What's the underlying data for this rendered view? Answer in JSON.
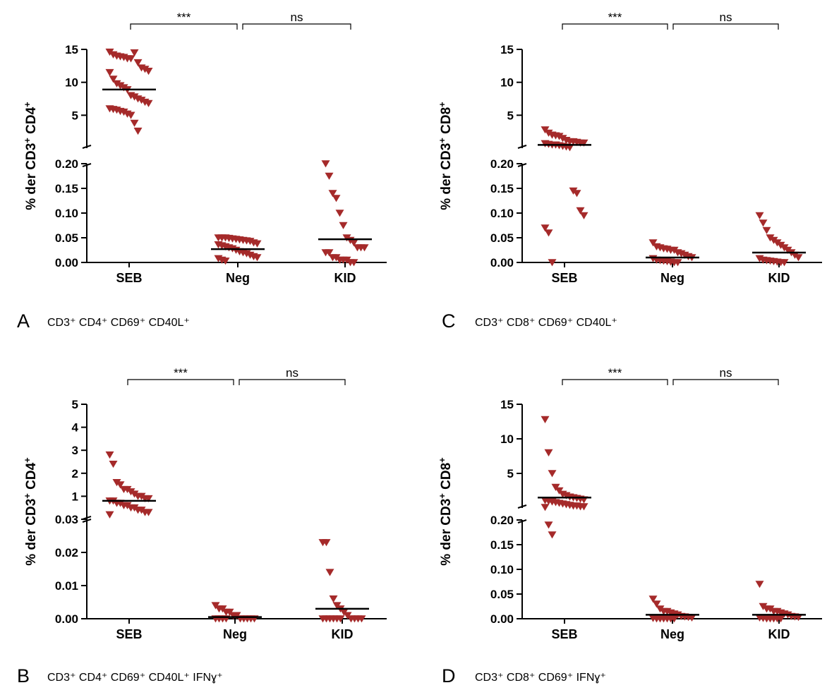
{
  "chart_data": [
    {
      "type": "scatter",
      "panel": "A",
      "caption": "CD3⁺ CD4⁺ CD69⁺ CD40L⁺",
      "ylabel_parts": [
        "% der CD3",
        "+",
        " CD4",
        "+"
      ],
      "categories": [
        "SEB",
        "Neg",
        "KID"
      ],
      "upper_ylim": [
        0,
        15
      ],
      "upper_ticks": [
        "5",
        "10",
        "15"
      ],
      "lower_ylim": [
        0,
        0.2
      ],
      "lower_ticks": [
        "0.00",
        "0.05",
        "0.10",
        "0.15",
        "0.20"
      ],
      "comparisons": [
        {
          "from": "SEB",
          "to": "Neg",
          "label": "***"
        },
        {
          "from": "Neg",
          "to": "KID",
          "label": "ns"
        }
      ],
      "groups": [
        {
          "category": "SEB",
          "mean": 8.9,
          "segment": "upper",
          "values": [
            14.6,
            14.2,
            14.0,
            13.9,
            13.8,
            13.6,
            13.6,
            14.5,
            13.0,
            12.2,
            12.0,
            11.7,
            11.5,
            10.5,
            9.8,
            9.5,
            9.2,
            8.9,
            8.0,
            7.8,
            7.5,
            7.3,
            7.0,
            6.8,
            6.0,
            5.9,
            5.8,
            5.6,
            5.5,
            5.2,
            5.0,
            3.8,
            2.6
          ]
        },
        {
          "category": "Neg",
          "mean": 0.027,
          "segment": "lower",
          "values": [
            0.05,
            0.05,
            0.05,
            0.049,
            0.048,
            0.047,
            0.046,
            0.045,
            0.044,
            0.043,
            0.04,
            0.038,
            0.036,
            0.034,
            0.032,
            0.03,
            0.028,
            0.025,
            0.022,
            0.02,
            0.018,
            0.015,
            0.012,
            0.01,
            0.008,
            0.005,
            0.003
          ]
        },
        {
          "category": "KID",
          "mean": 0.047,
          "segment": "lower",
          "values": [
            0.2,
            0.175,
            0.14,
            0.13,
            0.1,
            0.075,
            0.05,
            0.045,
            0.04,
            0.03,
            0.03,
            0.03,
            0.02,
            0.02,
            0.01,
            0.01,
            0.005,
            0.005,
            0.005,
            0.0,
            0.0
          ]
        }
      ]
    },
    {
      "type": "scatter",
      "panel": "C",
      "caption": "CD3⁺ CD8⁺ CD69⁺ CD40L⁺",
      "ylabel_parts": [
        "% der CD3",
        "+",
        " CD8",
        "+"
      ],
      "categories": [
        "SEB",
        "Neg",
        "KID"
      ],
      "upper_ylim": [
        0,
        15
      ],
      "upper_ticks": [
        "5",
        "10",
        "15"
      ],
      "lower_ylim": [
        0,
        0.2
      ],
      "lower_ticks": [
        "0.00",
        "0.05",
        "0.10",
        "0.15",
        "0.20"
      ],
      "comparisons": [
        {
          "from": "SEB",
          "to": "Neg",
          "label": "***"
        },
        {
          "from": "Neg",
          "to": "KID",
          "label": "ns"
        }
      ],
      "groups": [
        {
          "category": "SEB",
          "mean": 0.5,
          "segment": "mixed",
          "upper_values": [
            2.8,
            2.3,
            2.0,
            1.9,
            1.8,
            1.5,
            1.2,
            1.0,
            1.0,
            0.9,
            0.8,
            0.8,
            0.7,
            0.6,
            0.5,
            0.5,
            0.4,
            0.3,
            0.2,
            0.1
          ],
          "lower_values": [
            0.145,
            0.14,
            0.105,
            0.095,
            0.07,
            0.06,
            0.0
          ]
        },
        {
          "category": "Neg",
          "mean": 0.01,
          "segment": "lower",
          "values": [
            0.04,
            0.032,
            0.03,
            0.028,
            0.027,
            0.025,
            0.025,
            0.02,
            0.018,
            0.015,
            0.012,
            0.01,
            0.008,
            0.005,
            0.004,
            0.003,
            0.002,
            0.001,
            0.0,
            0.0
          ]
        },
        {
          "category": "KID",
          "mean": 0.02,
          "segment": "lower",
          "values": [
            0.095,
            0.08,
            0.065,
            0.05,
            0.045,
            0.04,
            0.035,
            0.03,
            0.025,
            0.02,
            0.015,
            0.01,
            0.008,
            0.005,
            0.004,
            0.003,
            0.002,
            0.001,
            0.0,
            0.0
          ]
        }
      ]
    },
    {
      "type": "scatter",
      "panel": "B",
      "caption": "CD3⁺ CD4⁺ CD69⁺ CD40L⁺ IFNɣ⁺",
      "ylabel_parts": [
        "% der CD3",
        "+",
        " CD4",
        "+"
      ],
      "categories": [
        "SEB",
        "Neg",
        "KID"
      ],
      "upper_ylim": [
        0,
        5
      ],
      "upper_ticks": [
        "1",
        "2",
        "3",
        "4",
        "5"
      ],
      "lower_ylim": [
        0,
        0.03
      ],
      "lower_ticks": [
        "0.00",
        "0.01",
        "0.02",
        "0.03"
      ],
      "comparisons": [
        {
          "from": "SEB",
          "to": "Neg",
          "label": "***"
        },
        {
          "from": "Neg",
          "to": "KID",
          "label": "ns"
        }
      ],
      "groups": [
        {
          "category": "SEB",
          "mean": 0.8,
          "segment": "upper",
          "values": [
            2.8,
            2.4,
            1.6,
            1.5,
            1.3,
            1.3,
            1.2,
            1.1,
            1.0,
            1.0,
            0.9,
            0.9,
            0.8,
            0.8,
            0.7,
            0.7,
            0.6,
            0.6,
            0.5,
            0.5,
            0.4,
            0.4,
            0.3,
            0.3,
            0.2
          ]
        },
        {
          "category": "Neg",
          "mean": 0.0005,
          "segment": "lower",
          "values": [
            0.004,
            0.003,
            0.003,
            0.002,
            0.002,
            0.001,
            0.001,
            0.0,
            0.0,
            0.0,
            0.0,
            0.0,
            0.0,
            0.0,
            0.0,
            0.0
          ]
        },
        {
          "category": "KID",
          "mean": 0.003,
          "segment": "lower",
          "values": [
            0.023,
            0.023,
            0.014,
            0.006,
            0.004,
            0.003,
            0.002,
            0.001,
            0.0,
            0.0,
            0.0,
            0.0,
            0.0,
            0.0,
            0.0,
            0.0,
            0.0,
            0.0
          ]
        }
      ]
    },
    {
      "type": "scatter",
      "panel": "D",
      "caption": "CD3⁺ CD8⁺ CD69⁺ IFNɣ⁺",
      "ylabel_parts": [
        "% der CD3",
        "+",
        " CD8",
        "+"
      ],
      "categories": [
        "SEB",
        "Neg",
        "KID"
      ],
      "upper_ylim": [
        0,
        15
      ],
      "upper_ticks": [
        "5",
        "10",
        "15"
      ],
      "lower_ylim": [
        0,
        0.2
      ],
      "lower_ticks": [
        "0.00",
        "0.05",
        "0.10",
        "0.15",
        "0.20"
      ],
      "comparisons": [
        {
          "from": "SEB",
          "to": "Neg",
          "label": "***"
        },
        {
          "from": "Neg",
          "to": "KID",
          "label": "ns"
        }
      ],
      "groups": [
        {
          "category": "SEB",
          "mean": 1.5,
          "segment": "mixed",
          "upper_values": [
            12.8,
            8.0,
            5.0,
            3.0,
            2.5,
            2.0,
            1.8,
            1.6,
            1.5,
            1.4,
            1.3,
            1.2,
            1.1,
            1.0,
            0.9,
            0.8,
            0.7,
            0.6,
            0.5,
            0.4,
            0.3,
            0.3,
            0.2,
            0.2,
            0.1
          ],
          "lower_values": [
            0.19,
            0.17
          ]
        },
        {
          "category": "Neg",
          "mean": 0.008,
          "segment": "lower",
          "values": [
            0.04,
            0.03,
            0.02,
            0.015,
            0.015,
            0.012,
            0.01,
            0.008,
            0.005,
            0.004,
            0.003,
            0.002,
            0.001,
            0.0,
            0.0,
            0.0,
            0.0,
            0.0,
            0.0
          ]
        },
        {
          "category": "KID",
          "mean": 0.008,
          "segment": "lower",
          "values": [
            0.07,
            0.025,
            0.02,
            0.02,
            0.015,
            0.015,
            0.012,
            0.01,
            0.008,
            0.005,
            0.004,
            0.003,
            0.002,
            0.001,
            0.0,
            0.0,
            0.0,
            0.0,
            0.0
          ]
        }
      ]
    }
  ],
  "colors": {
    "marker": "#a52a2a",
    "axis": "#000000"
  }
}
